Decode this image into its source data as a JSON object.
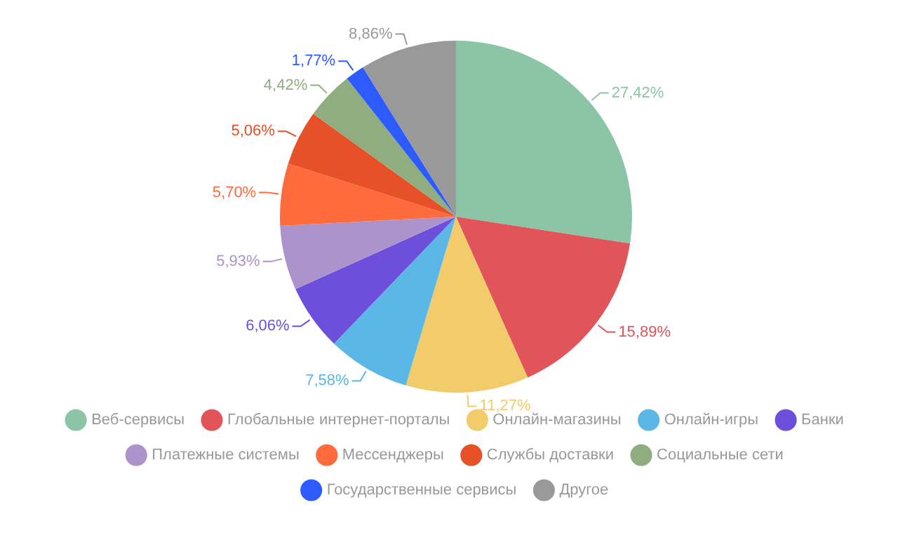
{
  "chart_data": {
    "type": "pie",
    "categories": [
      "Веб-сервисы",
      "Глобальные интернет-порталы",
      "Онлайн-магазины",
      "Онлайн-игры",
      "Банки",
      "Платежные системы",
      "Мессенджеры",
      "Службы доставки",
      "Социальные сети",
      "Государственные сервисы",
      "Другое"
    ],
    "values": [
      27.42,
      15.89,
      11.27,
      7.58,
      6.06,
      5.93,
      5.7,
      5.06,
      4.42,
      1.77,
      8.86
    ],
    "value_labels": [
      "27,42%",
      "15,89%",
      "11,27%",
      "7,58%",
      "6,06%",
      "5,93%",
      "5,70%",
      "5,06%",
      "4,42%",
      "1,77%",
      "8,86%"
    ],
    "colors": [
      "#8cc5a6",
      "#e0545a",
      "#f2cc6b",
      "#5ab7e6",
      "#6d4fdb",
      "#ad93cc",
      "#ff6b3d",
      "#e65127",
      "#8fad7e",
      "#2d5bff",
      "#999999"
    ],
    "legend": "bottom"
  }
}
